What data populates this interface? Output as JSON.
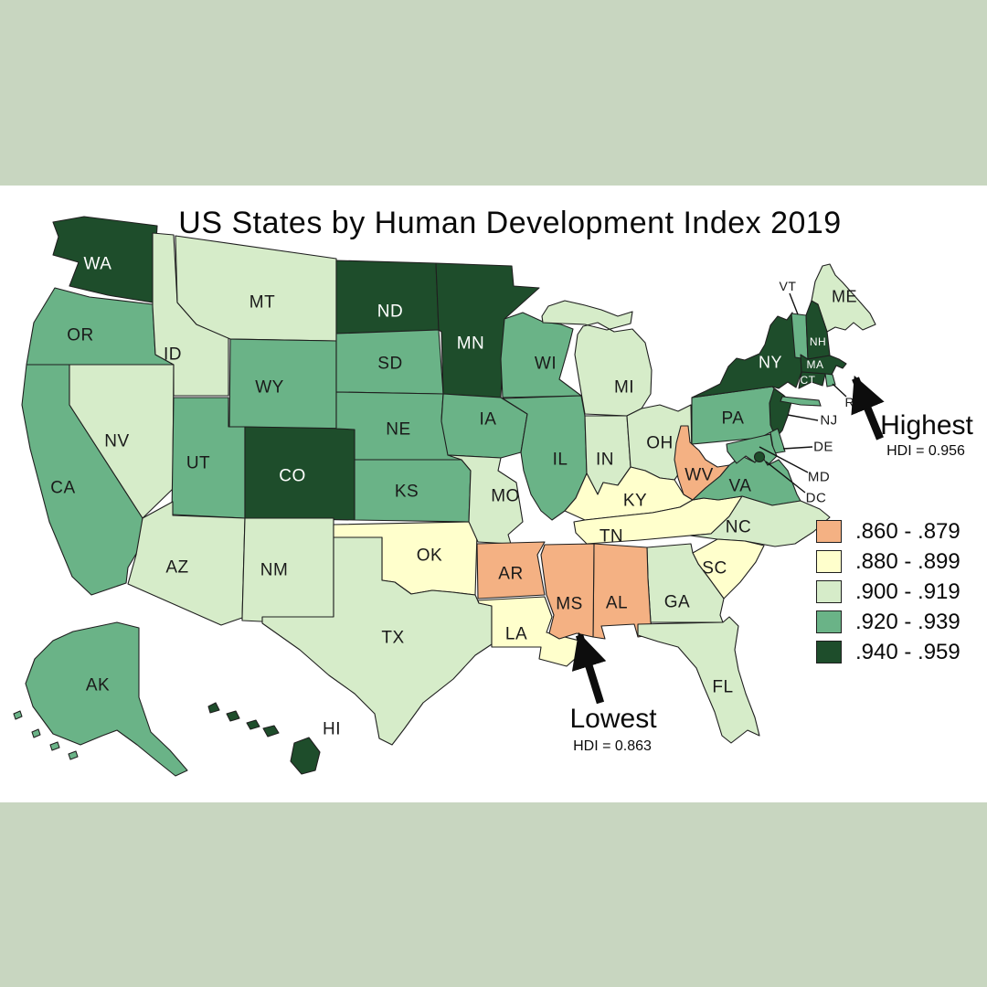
{
  "canvas": {
    "band_color": "#C8D6C0",
    "map_background": "#FFFFFF",
    "border_color": "#1F1F1F"
  },
  "map": {
    "title": "US States by Human Development Index 2019",
    "legend": {
      "items": [
        {
          "range": ".860 - .879",
          "color": "#F4B183"
        },
        {
          "range": ".880 - .899",
          "color": "#FFFFCC"
        },
        {
          "range": ".900 - .919",
          "color": "#D6ECC9"
        },
        {
          "range": ".920 - .939",
          "color": "#6AB387"
        },
        {
          "range": ".940 - .959",
          "color": "#1E4D2B"
        }
      ]
    },
    "annotations": {
      "highest": {
        "label": "Highest",
        "detail": "HDI = 0.956"
      },
      "lowest": {
        "label": "Lowest",
        "detail": "HDI = 0.863"
      }
    },
    "states": [
      {
        "abbr": "WA",
        "bucket": 4,
        "label_color": "#ffffff",
        "size": 19
      },
      {
        "abbr": "OR",
        "bucket": 3,
        "label_color": "#1a1a1a",
        "size": 19
      },
      {
        "abbr": "CA",
        "bucket": 3,
        "label_color": "#1a1a1a",
        "size": 19
      },
      {
        "abbr": "NV",
        "bucket": 2,
        "label_color": "#1a1a1a",
        "size": 19
      },
      {
        "abbr": "ID",
        "bucket": 2,
        "label_color": "#1a1a1a",
        "size": 19
      },
      {
        "abbr": "MT",
        "bucket": 2,
        "label_color": "#1a1a1a",
        "size": 19
      },
      {
        "abbr": "WY",
        "bucket": 3,
        "label_color": "#1a1a1a",
        "size": 19
      },
      {
        "abbr": "UT",
        "bucket": 3,
        "label_color": "#1a1a1a",
        "size": 19
      },
      {
        "abbr": "CO",
        "bucket": 4,
        "label_color": "#ffffff",
        "size": 19
      },
      {
        "abbr": "AZ",
        "bucket": 2,
        "label_color": "#1a1a1a",
        "size": 19
      },
      {
        "abbr": "NM",
        "bucket": 2,
        "label_color": "#1a1a1a",
        "size": 19
      },
      {
        "abbr": "ND",
        "bucket": 4,
        "label_color": "#ffffff",
        "size": 19
      },
      {
        "abbr": "SD",
        "bucket": 3,
        "label_color": "#1a1a1a",
        "size": 19
      },
      {
        "abbr": "NE",
        "bucket": 3,
        "label_color": "#1a1a1a",
        "size": 19
      },
      {
        "abbr": "KS",
        "bucket": 3,
        "label_color": "#1a1a1a",
        "size": 19
      },
      {
        "abbr": "OK",
        "bucket": 1,
        "label_color": "#1a1a1a",
        "size": 19
      },
      {
        "abbr": "TX",
        "bucket": 2,
        "label_color": "#1a1a1a",
        "size": 19
      },
      {
        "abbr": "MN",
        "bucket": 4,
        "label_color": "#ffffff",
        "size": 19
      },
      {
        "abbr": "IA",
        "bucket": 3,
        "label_color": "#1a1a1a",
        "size": 19
      },
      {
        "abbr": "MO",
        "bucket": 2,
        "label_color": "#1a1a1a",
        "size": 19
      },
      {
        "abbr": "AR",
        "bucket": 0,
        "label_color": "#1a1a1a",
        "size": 19
      },
      {
        "abbr": "LA",
        "bucket": 1,
        "label_color": "#1a1a1a",
        "size": 19
      },
      {
        "abbr": "WI",
        "bucket": 3,
        "label_color": "#1a1a1a",
        "size": 19
      },
      {
        "abbr": "IL",
        "bucket": 3,
        "label_color": "#1a1a1a",
        "size": 19
      },
      {
        "abbr": "MI",
        "bucket": 2,
        "label_color": "#1a1a1a",
        "size": 19
      },
      {
        "abbr": "IN",
        "bucket": 2,
        "label_color": "#1a1a1a",
        "size": 19
      },
      {
        "abbr": "OH",
        "bucket": 2,
        "label_color": "#1a1a1a",
        "size": 19
      },
      {
        "abbr": "KY",
        "bucket": 1,
        "label_color": "#1a1a1a",
        "size": 19
      },
      {
        "abbr": "TN",
        "bucket": 1,
        "label_color": "#1a1a1a",
        "size": 19
      },
      {
        "abbr": "WV",
        "bucket": 0,
        "label_color": "#1a1a1a",
        "size": 19
      },
      {
        "abbr": "VA",
        "bucket": 3,
        "label_color": "#1a1a1a",
        "size": 19
      },
      {
        "abbr": "NC",
        "bucket": 2,
        "label_color": "#1a1a1a",
        "size": 19
      },
      {
        "abbr": "SC",
        "bucket": 1,
        "label_color": "#1a1a1a",
        "size": 19
      },
      {
        "abbr": "GA",
        "bucket": 2,
        "label_color": "#1a1a1a",
        "size": 19
      },
      {
        "abbr": "AL",
        "bucket": 0,
        "label_color": "#1a1a1a",
        "size": 19
      },
      {
        "abbr": "MS",
        "bucket": 0,
        "label_color": "#1a1a1a",
        "size": 19
      },
      {
        "abbr": "FL",
        "bucket": 2,
        "label_color": "#1a1a1a",
        "size": 19
      },
      {
        "abbr": "PA",
        "bucket": 3,
        "label_color": "#1a1a1a",
        "size": 19
      },
      {
        "abbr": "NY",
        "bucket": 4,
        "label_color": "#ffffff",
        "size": 18
      },
      {
        "abbr": "ME",
        "bucket": 2,
        "label_color": "#1a1a1a",
        "size": 18
      },
      {
        "abbr": "VT",
        "bucket": 3,
        "label_color": "#1a1a1a",
        "size": 14
      },
      {
        "abbr": "NH",
        "bucket": 4,
        "label_color": "#ffffff",
        "size": 12
      },
      {
        "abbr": "MA",
        "bucket": 4,
        "label_color": "#ffffff",
        "size": 12
      },
      {
        "abbr": "CT",
        "bucket": 4,
        "label_color": "#ffffff",
        "size": 12
      },
      {
        "abbr": "RI",
        "bucket": 3,
        "label_color": "#1a1a1a",
        "size": 14
      },
      {
        "abbr": "NJ",
        "bucket": 4,
        "label_color": "#1a1a1a",
        "size": 15
      },
      {
        "abbr": "DE",
        "bucket": 3,
        "label_color": "#1a1a1a",
        "size": 15
      },
      {
        "abbr": "MD",
        "bucket": 3,
        "label_color": "#1a1a1a",
        "size": 15
      },
      {
        "abbr": "DC",
        "bucket": 4,
        "label_color": "#1a1a1a",
        "size": 15
      },
      {
        "abbr": "AK",
        "bucket": 3,
        "label_color": "#1a1a1a",
        "size": 19
      },
      {
        "abbr": "HI",
        "bucket": 4,
        "label_color": "#1a1a1a",
        "size": 19
      }
    ]
  }
}
